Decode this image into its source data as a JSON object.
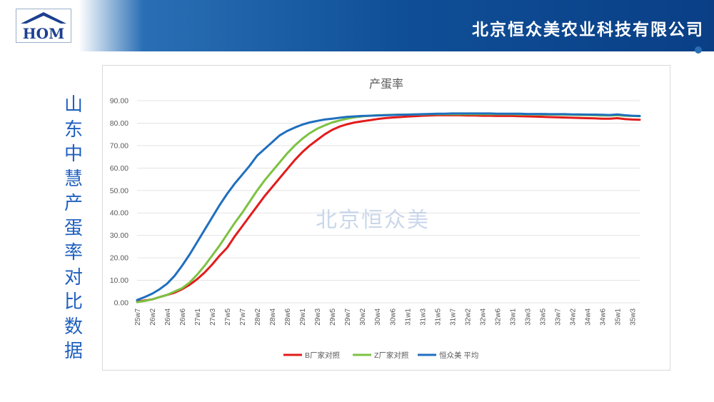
{
  "header": {
    "logo_text": "HOM",
    "company": "北京恒众美农业科技有限公司"
  },
  "side_title": [
    "山",
    "东",
    "中",
    "慧",
    "产",
    "蛋",
    "率",
    "对",
    "比",
    "数",
    "据"
  ],
  "watermark": "北京恒众美",
  "colors": {
    "series_b": "#e31b1b",
    "series_z": "#7cc242",
    "series_h": "#1f6fbf",
    "title_text": "#1f5fbf"
  },
  "chart_data": {
    "type": "line",
    "title": "产蛋率",
    "ylim": [
      0,
      90
    ],
    "y_ticks": [
      "0.00",
      "10.00",
      "20.00",
      "30.00",
      "40.00",
      "50.00",
      "60.00",
      "70.00",
      "80.00",
      "90.00"
    ],
    "grid": "horizontal",
    "legend_position": "bottom",
    "x_tick_labels": [
      "25w7",
      "26w2",
      "26w4",
      "26w6",
      "27w1",
      "27w3",
      "27w5",
      "27w7",
      "28w2",
      "28w4",
      "28w6",
      "29w1",
      "29w3",
      "29w5",
      "29w7",
      "30w2",
      "30w4",
      "30w6",
      "31w1",
      "31w3",
      "31w5",
      "31w7",
      "32w2",
      "32w4",
      "32w6",
      "33w1",
      "33w3",
      "33w5",
      "33w7",
      "34w2",
      "34w4",
      "34w6",
      "35w1",
      "35w3"
    ],
    "x": [
      "25w7",
      "26w1",
      "26w2",
      "26w3",
      "26w4",
      "26w5",
      "26w6",
      "26w7",
      "27w1",
      "27w2",
      "27w3",
      "27w4",
      "27w5",
      "27w6",
      "27w7",
      "28w1",
      "28w2",
      "28w3",
      "28w4",
      "28w5",
      "28w6",
      "28w7",
      "29w1",
      "29w2",
      "29w3",
      "29w4",
      "29w5",
      "29w6",
      "29w7",
      "30w1",
      "30w2",
      "30w3",
      "30w4",
      "30w5",
      "30w6",
      "30w7",
      "31w1",
      "31w2",
      "31w3",
      "31w4",
      "31w5",
      "31w6",
      "31w7",
      "32w1",
      "32w2",
      "32w3",
      "32w4",
      "32w5",
      "32w6",
      "32w7",
      "33w1",
      "33w2",
      "33w3",
      "33w4",
      "33w5",
      "33w6",
      "33w7",
      "34w1",
      "34w2",
      "34w3",
      "34w4",
      "34w5",
      "34w6",
      "34w7",
      "35w1",
      "35w2",
      "35w3",
      "35w4"
    ],
    "series": [
      {
        "name": "B厂家对照",
        "color": "#e31b1b",
        "values": [
          0.5,
          1.0,
          1.5,
          2.5,
          3.5,
          4.5,
          6.0,
          8.0,
          10.5,
          13.5,
          17.0,
          21.0,
          24.5,
          29.5,
          34.0,
          38.5,
          43.0,
          47.5,
          51.5,
          55.5,
          59.5,
          63.5,
          67.0,
          70.0,
          72.5,
          75.0,
          77.0,
          78.5,
          79.5,
          80.3,
          80.8,
          81.3,
          81.8,
          82.2,
          82.5,
          82.7,
          82.9,
          83.1,
          83.3,
          83.4,
          83.5,
          83.5,
          83.5,
          83.5,
          83.4,
          83.4,
          83.3,
          83.3,
          83.2,
          83.2,
          83.2,
          83.1,
          83.0,
          82.9,
          82.8,
          82.7,
          82.6,
          82.5,
          82.4,
          82.3,
          82.2,
          82.1,
          82.0,
          82.0,
          82.2,
          81.8,
          81.6,
          81.5
        ]
      },
      {
        "name": "Z厂家对照",
        "color": "#7cc242",
        "values": [
          0.3,
          0.8,
          1.5,
          2.5,
          3.5,
          5.0,
          6.5,
          9.0,
          12.5,
          16.5,
          21.0,
          25.5,
          30.5,
          35.5,
          40.0,
          45.0,
          50.0,
          54.5,
          58.5,
          62.5,
          66.5,
          70.0,
          73.0,
          75.5,
          77.5,
          79.0,
          80.3,
          81.2,
          82.0,
          82.6,
          83.0,
          83.3,
          83.5,
          83.6,
          83.7,
          83.8,
          83.8,
          83.9,
          83.9,
          84.0,
          84.0,
          84.0,
          84.0,
          84.0,
          84.0,
          84.0,
          84.0,
          84.0,
          84.0,
          84.0,
          84.0,
          83.9,
          83.9,
          83.9,
          83.8,
          83.8,
          83.8,
          83.7,
          83.7,
          83.6,
          83.6,
          83.5,
          83.4,
          83.4,
          83.5,
          83.3,
          83.2,
          83.1
        ]
      },
      {
        "name": "恒众美 平均",
        "color": "#1f6fbf",
        "values": [
          1.2,
          2.5,
          4.0,
          6.0,
          8.5,
          12.0,
          16.5,
          21.5,
          27.0,
          32.5,
          38.0,
          43.5,
          48.5,
          53.0,
          57.0,
          61.0,
          65.5,
          68.5,
          71.5,
          74.5,
          76.5,
          78.0,
          79.3,
          80.3,
          81.0,
          81.6,
          82.0,
          82.4,
          82.8,
          83.0,
          83.2,
          83.3,
          83.4,
          83.5,
          83.6,
          83.7,
          83.8,
          83.9,
          84.0,
          84.1,
          84.2,
          84.2,
          84.3,
          84.3,
          84.3,
          84.3,
          84.3,
          84.3,
          84.2,
          84.2,
          84.2,
          84.2,
          84.1,
          84.1,
          84.1,
          84.0,
          84.0,
          84.0,
          83.9,
          83.9,
          83.8,
          83.8,
          83.7,
          83.6,
          83.9,
          83.5,
          83.3,
          83.2
        ]
      }
    ]
  }
}
